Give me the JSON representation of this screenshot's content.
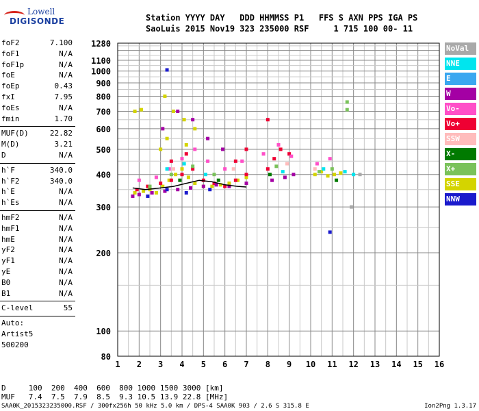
{
  "logo": {
    "line1": "Lowell",
    "line2": "DIGISONDE"
  },
  "header": {
    "line1": "Station YYYY DAY   DDD HHMMSS P1   FFS S AXN PPS IGA PS",
    "line2": "SaoLuis 2015 Nov19 323 235000 RSF     1 715 100 00- 11"
  },
  "params": {
    "group1": [
      {
        "k": "foF2",
        "v": "7.100"
      },
      {
        "k": "foF1",
        "v": "N/A"
      },
      {
        "k": "foF1p",
        "v": "N/A"
      },
      {
        "k": "foE",
        "v": "N/A"
      },
      {
        "k": "foEp",
        "v": "0.43"
      },
      {
        "k": "fxI",
        "v": "7.95"
      },
      {
        "k": "foEs",
        "v": "N/A"
      },
      {
        "k": "fmin",
        "v": "1.70"
      }
    ],
    "group2": [
      {
        "k": "MUF(D)",
        "v": "22.82"
      },
      {
        "k": "M(D)",
        "v": "3.21"
      },
      {
        "k": "D",
        "v": "N/A"
      }
    ],
    "group3": [
      {
        "k": "h`F",
        "v": "340.0"
      },
      {
        "k": "h`F2",
        "v": "340.0"
      },
      {
        "k": "h`E",
        "v": "N/A"
      },
      {
        "k": "h`Es",
        "v": "N/A"
      }
    ],
    "group4": [
      {
        "k": "hmF2",
        "v": "N/A"
      },
      {
        "k": "hmF1",
        "v": "N/A"
      },
      {
        "k": "hmE",
        "v": "N/A"
      },
      {
        "k": "yF2",
        "v": "N/A"
      },
      {
        "k": "yF1",
        "v": "N/A"
      },
      {
        "k": "yE",
        "v": "N/A"
      },
      {
        "k": "B0",
        "v": "N/A"
      },
      {
        "k": "B1",
        "v": "N/A"
      }
    ],
    "clevel": {
      "k": "C-level",
      "v": "55"
    },
    "notes": [
      "Auto:",
      "Artist5",
      "500200"
    ]
  },
  "legend": [
    {
      "label": "NoVal",
      "color": "#a9a9a9",
      "text": "#ffffff"
    },
    {
      "label": "NNE",
      "color": "#00e5ee",
      "text": "#ffffff"
    },
    {
      "label": "E",
      "color": "#3aa7f0",
      "text": "#ffffff"
    },
    {
      "label": "W",
      "color": "#a400a4",
      "text": "#ffffff"
    },
    {
      "label": "Vo-",
      "color": "#ff4fc8",
      "text": "#ffffff"
    },
    {
      "label": "Vo+",
      "color": "#ef0033",
      "text": "#ffffff"
    },
    {
      "label": "SSW",
      "color": "#ffbcbc",
      "text": "#ffffff"
    },
    {
      "label": "X-",
      "color": "#007a00",
      "text": "#ffffff"
    },
    {
      "label": "X+",
      "color": "#7ac25a",
      "text": "#ffffff"
    },
    {
      "label": "SSE",
      "color": "#d4d400",
      "text": "#ffffff"
    },
    {
      "label": "NNW",
      "color": "#1a1acc",
      "text": "#ffffff"
    }
  ],
  "bottom": {
    "d_row": "D     100  200  400  600  800 1000 1500 3000 [km]",
    "muf_row": "MUF   7.4  7.5  7.9  8.5  9.3 10.5 13.9 22.8 [MHz]",
    "footer_left": "SAA0K_2015323235000.RSF / 300fx256h 50 kHz 5.0 km / DPS-4 SAA0K 903 / 2.6 S 315.8 E",
    "footer_right": "Ion2Png 1.3.17"
  },
  "chart_data": {
    "type": "scatter",
    "title": "",
    "xlabel": "",
    "ylabel": "",
    "xlim": [
      1,
      16
    ],
    "ylim": [
      80,
      1280
    ],
    "y_scale": "log",
    "grid": true,
    "x_ticks": [
      1,
      2,
      3,
      4,
      5,
      6,
      7,
      8,
      9,
      10,
      11,
      12,
      13,
      14,
      15,
      16
    ],
    "y_ticks": [
      80,
      100,
      200,
      300,
      400,
      500,
      600,
      700,
      800,
      900,
      1000,
      1100,
      1280
    ],
    "series": [
      {
        "name": "SSE",
        "color": "#d4d400",
        "points": [
          [
            1.8,
            340
          ],
          [
            2.2,
            345
          ],
          [
            2.5,
            350
          ],
          [
            2.8,
            340
          ],
          [
            3.1,
            360
          ],
          [
            3.4,
            380
          ],
          [
            3.7,
            400
          ],
          [
            4.0,
            420
          ],
          [
            4.3,
            390
          ],
          [
            4.6,
            370
          ],
          [
            5.0,
            360
          ],
          [
            5.4,
            360
          ],
          [
            5.8,
            365
          ],
          [
            6.2,
            370
          ],
          [
            6.6,
            380
          ],
          [
            7.0,
            390
          ],
          [
            10.2,
            400
          ],
          [
            10.5,
            410
          ],
          [
            10.8,
            395
          ],
          [
            11.1,
            400
          ],
          [
            11.4,
            405
          ],
          [
            3.2,
            800
          ],
          [
            3.6,
            700
          ],
          [
            4.1,
            650
          ],
          [
            4.6,
            600
          ],
          [
            1.8,
            700
          ],
          [
            2.1,
            710
          ],
          [
            3.0,
            500
          ],
          [
            3.3,
            550
          ],
          [
            4.2,
            520
          ]
        ]
      },
      {
        "name": "Vo+",
        "color": "#ef0033",
        "points": [
          [
            1.9,
            350
          ],
          [
            2.4,
            360
          ],
          [
            3.0,
            370
          ],
          [
            3.5,
            380
          ],
          [
            4.0,
            400
          ],
          [
            4.5,
            420
          ],
          [
            5.0,
            380
          ],
          [
            5.5,
            370
          ],
          [
            6.0,
            360
          ],
          [
            6.5,
            380
          ],
          [
            7.0,
            400
          ],
          [
            8.0,
            420
          ],
          [
            8.3,
            460
          ],
          [
            8.6,
            500
          ],
          [
            9.0,
            480
          ],
          [
            6.5,
            450
          ],
          [
            7.0,
            500
          ],
          [
            8.0,
            650
          ],
          [
            3.5,
            450
          ],
          [
            4.2,
            480
          ]
        ]
      },
      {
        "name": "W",
        "color": "#a400a4",
        "points": [
          [
            1.7,
            330
          ],
          [
            2.0,
            335
          ],
          [
            2.6,
            340
          ],
          [
            3.2,
            345
          ],
          [
            3.8,
            350
          ],
          [
            4.4,
            355
          ],
          [
            5.0,
            360
          ],
          [
            5.6,
            365
          ],
          [
            6.2,
            360
          ],
          [
            7.0,
            370
          ],
          [
            8.2,
            380
          ],
          [
            8.8,
            390
          ],
          [
            9.2,
            400
          ],
          [
            3.1,
            600
          ],
          [
            3.8,
            700
          ],
          [
            4.5,
            650
          ],
          [
            5.2,
            550
          ],
          [
            5.9,
            500
          ]
        ]
      },
      {
        "name": "Vo-",
        "color": "#ff4fc8",
        "points": [
          [
            2.0,
            380
          ],
          [
            2.8,
            390
          ],
          [
            3.4,
            420
          ],
          [
            4.0,
            460
          ],
          [
            4.6,
            500
          ],
          [
            5.2,
            450
          ],
          [
            6.0,
            420
          ],
          [
            6.8,
            450
          ],
          [
            7.8,
            480
          ],
          [
            8.5,
            520
          ],
          [
            9.1,
            470
          ],
          [
            10.3,
            440
          ],
          [
            10.9,
            460
          ]
        ]
      },
      {
        "name": "NNE",
        "color": "#00e5ee",
        "points": [
          [
            3.3,
            420
          ],
          [
            4.1,
            440
          ],
          [
            5.1,
            400
          ],
          [
            8.7,
            410
          ],
          [
            10.6,
            420
          ],
          [
            11.6,
            410
          ],
          [
            12.0,
            400
          ]
        ]
      },
      {
        "name": "X+",
        "color": "#7ac25a",
        "points": [
          [
            2.5,
            360
          ],
          [
            3.5,
            400
          ],
          [
            4.5,
            430
          ],
          [
            5.5,
            400
          ],
          [
            8.4,
            430
          ],
          [
            10.4,
            410
          ],
          [
            11.0,
            420
          ],
          [
            11.7,
            710
          ],
          [
            11.7,
            760
          ]
        ]
      },
      {
        "name": "NNW",
        "color": "#1a1acc",
        "points": [
          [
            2.4,
            330
          ],
          [
            3.3,
            350
          ],
          [
            4.2,
            340
          ],
          [
            5.3,
            350
          ],
          [
            3.3,
            1010
          ],
          [
            10.9,
            240
          ]
        ]
      },
      {
        "name": "X-",
        "color": "#007a00",
        "points": [
          [
            3.9,
            380
          ],
          [
            5.7,
            380
          ],
          [
            8.1,
            400
          ],
          [
            11.2,
            380
          ]
        ]
      },
      {
        "name": "SSW",
        "color": "#ffbcbc",
        "points": [
          [
            3.6,
            420
          ],
          [
            6.4,
            420
          ],
          [
            8.9,
            440
          ],
          [
            10.2,
            420
          ]
        ]
      },
      {
        "name": "NoVal",
        "color": "#a9a9a9",
        "points": [
          [
            11.9,
            300
          ],
          [
            12.3,
            400
          ]
        ]
      }
    ],
    "trace": {
      "color": "#000000",
      "points": [
        [
          1.7,
          355
        ],
        [
          2.3,
          350
        ],
        [
          3.0,
          355
        ],
        [
          3.6,
          360
        ],
        [
          4.2,
          370
        ],
        [
          4.8,
          380
        ],
        [
          5.4,
          375
        ],
        [
          6.0,
          365
        ],
        [
          6.6,
          360
        ],
        [
          7.0,
          358
        ]
      ]
    }
  }
}
